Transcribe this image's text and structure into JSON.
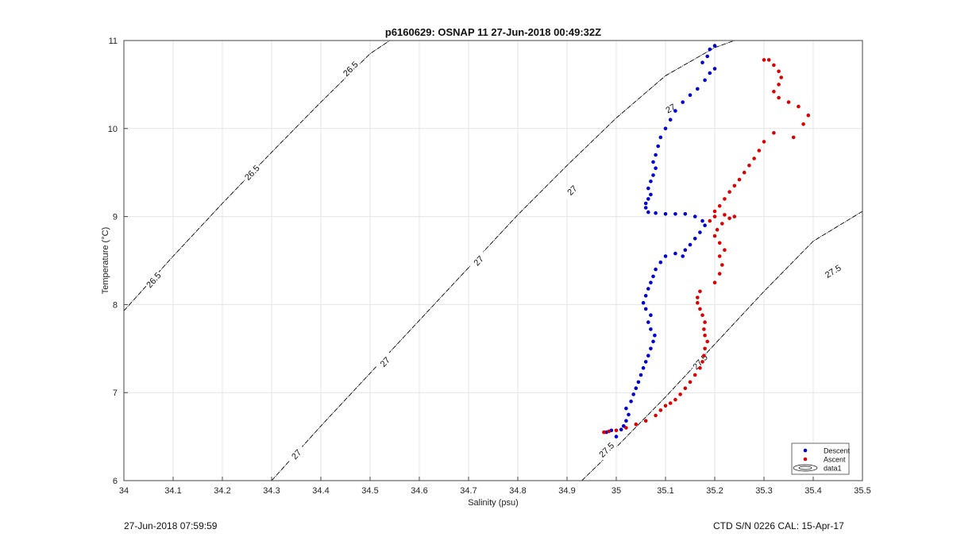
{
  "chart_data": {
    "type": "scatter",
    "title": "p6160629: OSNAP 11 27-Jun-2018 00:49:32Z",
    "xlabel": "Salinity (psu)",
    "ylabel": "Temperature (°C)",
    "xlim": [
      34,
      35.5
    ],
    "ylim": [
      6,
      11
    ],
    "xticks": [
      34,
      34.1,
      34.2,
      34.3,
      34.4,
      34.5,
      34.6,
      34.7,
      34.8,
      34.9,
      35,
      35.1,
      35.2,
      35.3,
      35.4,
      35.5
    ],
    "xtick_labels": [
      "34",
      "34.1",
      "34.2",
      "34.3",
      "34.4",
      "34.5",
      "34.6",
      "34.7",
      "34.8",
      "34.9",
      "35",
      "35.1",
      "35.2",
      "35.3",
      "35.4",
      "35.5"
    ],
    "yticks": [
      6,
      7,
      8,
      9,
      10,
      11
    ],
    "ytick_labels": [
      "6",
      "7",
      "8",
      "9",
      "10",
      "11"
    ],
    "grid": true,
    "legend_position": "bottom-right",
    "series": [
      {
        "name": "Descent",
        "color": "#0000d0",
        "points": [
          [
            34.975,
            6.55
          ],
          [
            34.98,
            6.55
          ],
          [
            34.99,
            6.57
          ],
          [
            35.0,
            6.5
          ],
          [
            35.01,
            6.58
          ],
          [
            35.015,
            6.62
          ],
          [
            35.02,
            6.68
          ],
          [
            35.025,
            6.75
          ],
          [
            35.02,
            6.82
          ],
          [
            35.03,
            6.9
          ],
          [
            35.035,
            6.98
          ],
          [
            35.04,
            7.05
          ],
          [
            35.045,
            7.12
          ],
          [
            35.05,
            7.2
          ],
          [
            35.055,
            7.28
          ],
          [
            35.06,
            7.35
          ],
          [
            35.065,
            7.42
          ],
          [
            35.07,
            7.5
          ],
          [
            35.075,
            7.58
          ],
          [
            35.078,
            7.65
          ],
          [
            35.07,
            7.72
          ],
          [
            35.065,
            7.8
          ],
          [
            35.07,
            7.88
          ],
          [
            35.06,
            7.95
          ],
          [
            35.055,
            8.02
          ],
          [
            35.06,
            8.1
          ],
          [
            35.065,
            8.18
          ],
          [
            35.07,
            8.25
          ],
          [
            35.075,
            8.32
          ],
          [
            35.08,
            8.4
          ],
          [
            35.09,
            8.48
          ],
          [
            35.1,
            8.55
          ],
          [
            35.12,
            8.58
          ],
          [
            35.135,
            8.55
          ],
          [
            35.14,
            8.62
          ],
          [
            35.15,
            8.68
          ],
          [
            35.16,
            8.75
          ],
          [
            35.17,
            8.82
          ],
          [
            35.18,
            8.9
          ],
          [
            35.175,
            8.95
          ],
          [
            35.16,
            9.0
          ],
          [
            35.14,
            9.03
          ],
          [
            35.12,
            9.03
          ],
          [
            35.1,
            9.03
          ],
          [
            35.08,
            9.04
          ],
          [
            35.065,
            9.05
          ],
          [
            35.06,
            9.1
          ],
          [
            35.06,
            9.15
          ],
          [
            35.065,
            9.2
          ],
          [
            35.07,
            9.25
          ],
          [
            35.065,
            9.32
          ],
          [
            35.07,
            9.4
          ],
          [
            35.075,
            9.47
          ],
          [
            35.08,
            9.55
          ],
          [
            35.075,
            9.62
          ],
          [
            35.08,
            9.7
          ],
          [
            35.085,
            9.8
          ],
          [
            35.09,
            9.9
          ],
          [
            35.1,
            10.0
          ],
          [
            35.11,
            10.1
          ],
          [
            35.12,
            10.2
          ],
          [
            35.135,
            10.3
          ],
          [
            35.15,
            10.38
          ],
          [
            35.165,
            10.45
          ],
          [
            35.18,
            10.55
          ],
          [
            35.19,
            10.63
          ],
          [
            35.2,
            10.68
          ],
          [
            35.175,
            10.75
          ],
          [
            35.185,
            10.82
          ],
          [
            35.19,
            10.9
          ],
          [
            35.2,
            10.94
          ]
        ]
      },
      {
        "name": "Ascent",
        "color": "#dd0000",
        "points": [
          [
            34.975,
            6.55
          ],
          [
            34.985,
            6.56
          ],
          [
            35.0,
            6.57
          ],
          [
            35.02,
            6.6
          ],
          [
            35.04,
            6.64
          ],
          [
            35.06,
            6.68
          ],
          [
            35.08,
            6.74
          ],
          [
            35.09,
            6.8
          ],
          [
            35.1,
            6.85
          ],
          [
            35.11,
            6.88
          ],
          [
            35.12,
            6.92
          ],
          [
            35.13,
            6.98
          ],
          [
            35.14,
            7.05
          ],
          [
            35.15,
            7.12
          ],
          [
            35.16,
            7.2
          ],
          [
            35.17,
            7.28
          ],
          [
            35.175,
            7.35
          ],
          [
            35.178,
            7.42
          ],
          [
            35.18,
            7.5
          ],
          [
            35.185,
            7.58
          ],
          [
            35.18,
            7.65
          ],
          [
            35.178,
            7.72
          ],
          [
            35.18,
            7.8
          ],
          [
            35.175,
            7.88
          ],
          [
            35.17,
            7.95
          ],
          [
            35.165,
            8.02
          ],
          [
            35.165,
            8.08
          ],
          [
            35.17,
            8.15
          ],
          [
            35.2,
            8.25
          ],
          [
            35.21,
            8.35
          ],
          [
            35.215,
            8.45
          ],
          [
            35.21,
            8.55
          ],
          [
            35.22,
            8.62
          ],
          [
            35.21,
            8.7
          ],
          [
            35.2,
            8.78
          ],
          [
            35.205,
            8.85
          ],
          [
            35.215,
            8.92
          ],
          [
            35.23,
            8.98
          ],
          [
            35.24,
            9.0
          ],
          [
            35.22,
            9.02
          ],
          [
            35.2,
            9.0
          ],
          [
            35.19,
            8.95
          ],
          [
            35.2,
            9.06
          ],
          [
            35.21,
            9.12
          ],
          [
            35.22,
            9.2
          ],
          [
            35.23,
            9.28
          ],
          [
            35.24,
            9.35
          ],
          [
            35.25,
            9.42
          ],
          [
            35.26,
            9.5
          ],
          [
            35.27,
            9.58
          ],
          [
            35.28,
            9.66
          ],
          [
            35.29,
            9.75
          ],
          [
            35.3,
            9.85
          ],
          [
            35.32,
            9.95
          ],
          [
            35.36,
            9.9
          ],
          [
            35.38,
            10.05
          ],
          [
            35.39,
            10.15
          ],
          [
            35.37,
            10.25
          ],
          [
            35.35,
            10.3
          ],
          [
            35.33,
            10.35
          ],
          [
            35.32,
            10.42
          ],
          [
            35.33,
            10.5
          ],
          [
            35.335,
            10.58
          ],
          [
            35.33,
            10.65
          ],
          [
            35.32,
            10.72
          ],
          [
            35.31,
            10.78
          ],
          [
            35.3,
            10.78
          ]
        ]
      }
    ],
    "contours": [
      {
        "label": "26.5",
        "points": [
          [
            34.0,
            7.93
          ],
          [
            34.1,
            8.55
          ],
          [
            34.2,
            9.15
          ],
          [
            34.3,
            9.73
          ],
          [
            34.4,
            10.3
          ],
          [
            34.5,
            10.85
          ],
          [
            34.54,
            11.0
          ]
        ],
        "label_positions": [
          [
            34.06,
            8.28
          ],
          [
            34.26,
            9.5
          ],
          [
            34.46,
            10.68
          ]
        ]
      },
      {
        "label": "27",
        "points": [
          [
            34.3,
            6.0
          ],
          [
            34.4,
            6.62
          ],
          [
            34.5,
            7.22
          ],
          [
            34.6,
            7.82
          ],
          [
            34.7,
            8.42
          ],
          [
            34.8,
            9.02
          ],
          [
            34.9,
            9.58
          ],
          [
            35.0,
            10.12
          ],
          [
            35.1,
            10.6
          ],
          [
            35.2,
            10.92
          ],
          [
            35.24,
            11.0
          ]
        ],
        "label_positions": [
          [
            34.35,
            6.3
          ],
          [
            34.53,
            7.35
          ],
          [
            34.72,
            8.5
          ],
          [
            34.91,
            9.3
          ],
          [
            35.11,
            10.23
          ]
        ]
      },
      {
        "label": "27.5",
        "points": [
          [
            34.93,
            6.0
          ],
          [
            35.0,
            6.38
          ],
          [
            35.1,
            6.95
          ],
          [
            35.2,
            7.55
          ],
          [
            35.3,
            8.15
          ],
          [
            35.4,
            8.72
          ],
          [
            35.5,
            9.06
          ]
        ],
        "label_positions": [
          [
            34.98,
            6.35
          ],
          [
            35.17,
            7.35
          ],
          [
            35.44,
            8.38
          ]
        ]
      }
    ],
    "legend": [
      {
        "label": "Descent",
        "color": "#0000d0",
        "marker": "dot"
      },
      {
        "label": "Ascent",
        "color": "#dd0000",
        "marker": "dot"
      },
      {
        "label": "data1",
        "color": "#000000",
        "marker": "contour"
      }
    ]
  },
  "footer": {
    "left": "27-Jun-2018 07:59:59",
    "right": "CTD S/N 0226  CAL: 15-Apr-17"
  }
}
